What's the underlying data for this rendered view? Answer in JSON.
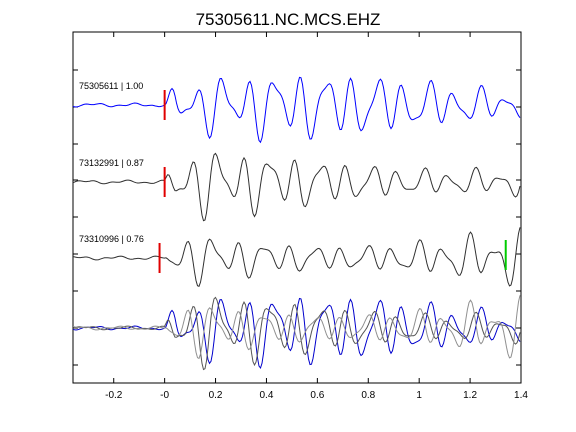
{
  "chart_data": {
    "type": "line",
    "title": "75305611.NC.MCS.EHZ",
    "xlabel": "",
    "ylabel": "",
    "xlim": [
      -0.36,
      1.4
    ],
    "x_ticks": [
      -0.2,
      0,
      0.2,
      0.4,
      0.6,
      0.8,
      1,
      1.2,
      1.4
    ],
    "x_tick_labels": [
      "-0.2",
      "-0",
      "0.2",
      "0.4",
      "0.6",
      "0.8",
      "1",
      "1.2",
      "1.4"
    ],
    "grid": false,
    "series": [
      {
        "name": "75305611 | 1.00",
        "color": "#0000ff",
        "pick_x": 0.0,
        "pick_color": "#e00000"
      },
      {
        "name": "73132991 | 0.87",
        "color": "#303030",
        "pick_x": 0.0,
        "pick_color": "#e00000"
      },
      {
        "name": "73310996 | 0.76",
        "color": "#303030",
        "pick_x": -0.02,
        "pick_color": "#e00000",
        "extra_pick_x": 1.34,
        "extra_pick_color": "#00cc00"
      }
    ],
    "overlay_colors": [
      "#0000cc",
      "#555555",
      "#909090"
    ]
  }
}
